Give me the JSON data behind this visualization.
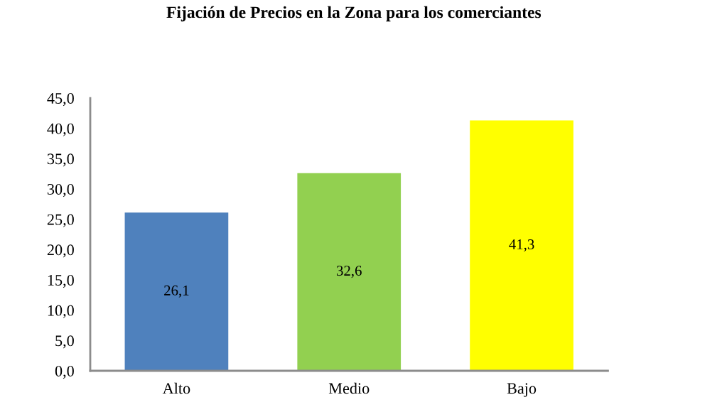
{
  "chart_data": {
    "type": "bar",
    "title": "Fijación de Precios en la Zona para los comerciantes",
    "categories": [
      "Alto",
      "Medio",
      "Bajo"
    ],
    "values": [
      26.1,
      32.6,
      41.3
    ],
    "value_labels": [
      "26,1",
      "32,6",
      "41,3"
    ],
    "colors": [
      "#4f81bd",
      "#92d050",
      "#ffff00"
    ],
    "ylim": [
      0,
      45
    ],
    "yticks": [
      {
        "value": 0,
        "label": "0,0"
      },
      {
        "value": 5,
        "label": "5,0"
      },
      {
        "value": 10,
        "label": "10,0"
      },
      {
        "value": 15,
        "label": "15,0"
      },
      {
        "value": 20,
        "label": "20,0"
      },
      {
        "value": 25,
        "label": "25,0"
      },
      {
        "value": 30,
        "label": "30,0"
      },
      {
        "value": 35,
        "label": "35,0"
      },
      {
        "value": 40,
        "label": "40,0"
      },
      {
        "value": 45,
        "label": "45,0"
      }
    ]
  }
}
